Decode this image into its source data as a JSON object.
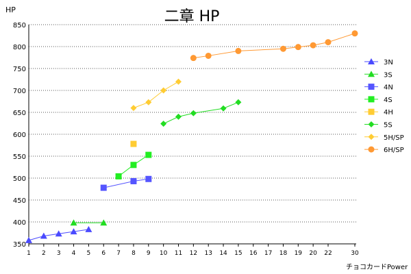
{
  "chart_data": {
    "type": "line",
    "title": "二章 HP",
    "ylabel": "HP",
    "xlabel": "チョコカードPower",
    "ylim": [
      350,
      850
    ],
    "yticks": [
      350,
      400,
      450,
      500,
      550,
      600,
      650,
      700,
      750,
      800,
      850
    ],
    "xticks": [
      1,
      2,
      3,
      4,
      5,
      6,
      7,
      8,
      9,
      10,
      11,
      12,
      13,
      14,
      15,
      16,
      17,
      18,
      19,
      20,
      22,
      30
    ],
    "x_scale": "categorical ticks (uneven spacing at 22 and 30)",
    "grid": "horizontal dotted lines",
    "legend_position": "right",
    "series": [
      {
        "name": "3N",
        "color": "#4a4aff",
        "marker": "triangle",
        "points": [
          [
            1,
            358
          ],
          [
            2,
            368
          ],
          [
            3,
            373
          ],
          [
            4,
            378
          ],
          [
            5,
            383
          ]
        ]
      },
      {
        "name": "3S",
        "color": "#22dd22",
        "marker": "triangle",
        "points": [
          [
            4,
            398
          ],
          [
            6,
            398
          ]
        ]
      },
      {
        "name": "4N",
        "color": "#5555ff",
        "marker": "square",
        "points": [
          [
            6,
            478
          ],
          [
            8,
            493
          ],
          [
            9,
            498
          ]
        ]
      },
      {
        "name": "4S",
        "color": "#22ee22",
        "marker": "square",
        "points": [
          [
            7,
            504
          ],
          [
            8,
            530
          ],
          [
            9,
            553
          ]
        ]
      },
      {
        "name": "4H",
        "color": "#ffcc33",
        "marker": "square",
        "points": [
          [
            8,
            578
          ]
        ]
      },
      {
        "name": "5S",
        "color": "#22dd22",
        "marker": "diamond",
        "points": [
          [
            10,
            624
          ],
          [
            11,
            640
          ],
          [
            12,
            648
          ],
          [
            14,
            659
          ],
          [
            15,
            673
          ]
        ]
      },
      {
        "name": "5H/SP",
        "color": "#ffcc33",
        "marker": "diamond",
        "points": [
          [
            8,
            660
          ],
          [
            9,
            673
          ],
          [
            10,
            700
          ],
          [
            11,
            720
          ]
        ]
      },
      {
        "name": "6H/SP",
        "color": "#ff9933",
        "marker": "circle",
        "points": [
          [
            12,
            774
          ],
          [
            13,
            779
          ],
          [
            15,
            790
          ],
          [
            18,
            795
          ],
          [
            19,
            799
          ],
          [
            20,
            803
          ],
          [
            22,
            810
          ],
          [
            30,
            830
          ]
        ]
      }
    ]
  }
}
